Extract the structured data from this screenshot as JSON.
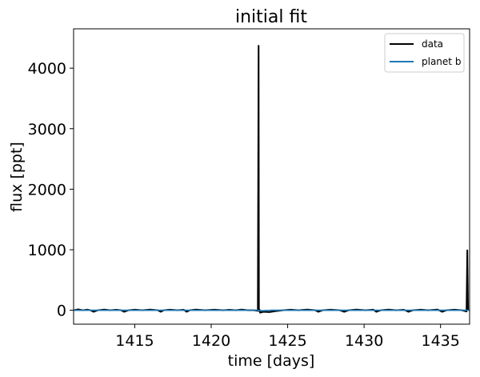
{
  "chart_data": {
    "type": "line",
    "title": "initial fit",
    "xlabel": "time [days]",
    "ylabel": "flux [ppt]",
    "xlim": [
      1411.0,
      1436.9
    ],
    "ylim": [
      -230,
      4650
    ],
    "xticks": [
      1415,
      1420,
      1425,
      1430,
      1435
    ],
    "yticks": [
      0,
      1000,
      2000,
      3000,
      4000
    ],
    "grid": false,
    "legend_position": "top-right",
    "series": [
      {
        "name": "data",
        "color": "#000000",
        "x": [
          1411.0,
          1411.3,
          1411.6,
          1411.9,
          1412.1,
          1412.3,
          1412.6,
          1413.0,
          1413.4,
          1413.8,
          1414.1,
          1414.3,
          1414.6,
          1415.0,
          1415.5,
          1416.0,
          1416.5,
          1416.7,
          1416.9,
          1417.3,
          1417.8,
          1418.2,
          1418.4,
          1418.6,
          1419.0,
          1419.6,
          1420.2,
          1420.8,
          1421.2,
          1421.6,
          1422.0,
          1422.4,
          1422.8,
          1423.05,
          1423.1,
          1423.12,
          1423.14,
          1423.16,
          1423.2,
          1423.4,
          1423.8,
          1424.2,
          1424.7,
          1425.2,
          1425.7,
          1426.3,
          1426.8,
          1427.0,
          1427.3,
          1427.8,
          1428.4,
          1428.7,
          1429.0,
          1429.5,
          1430.1,
          1430.6,
          1430.8,
          1431.1,
          1431.6,
          1432.1,
          1432.6,
          1432.9,
          1433.2,
          1433.7,
          1434.2,
          1434.8,
          1435.1,
          1435.4,
          1435.9,
          1436.4,
          1436.7,
          1436.75,
          1436.8
        ],
        "y": [
          0,
          15,
          0,
          10,
          0,
          -25,
          0,
          12,
          0,
          8,
          0,
          -25,
          0,
          10,
          0,
          12,
          0,
          -25,
          0,
          10,
          0,
          8,
          -25,
          0,
          12,
          0,
          10,
          0,
          8,
          0,
          12,
          0,
          0,
          -10,
          4370,
          20,
          -15,
          10,
          -40,
          -25,
          -30,
          -15,
          0,
          10,
          0,
          12,
          0,
          -25,
          0,
          10,
          0,
          -25,
          0,
          12,
          0,
          10,
          -25,
          0,
          12,
          0,
          8,
          -25,
          0,
          10,
          0,
          12,
          -25,
          0,
          10,
          0,
          -20,
          990,
          0
        ]
      },
      {
        "name": "planet b",
        "color": "#1f77b4",
        "x": [
          1411.0,
          1413.0,
          1415.0,
          1417.0,
          1419.0,
          1421.0,
          1423.0,
          1423.4,
          1424.0,
          1426.0,
          1428.0,
          1430.0,
          1432.0,
          1434.0,
          1436.0,
          1436.9
        ],
        "y": [
          0,
          0,
          0,
          0,
          0,
          0,
          0,
          -8,
          0,
          0,
          0,
          0,
          0,
          0,
          0,
          0
        ]
      }
    ]
  }
}
